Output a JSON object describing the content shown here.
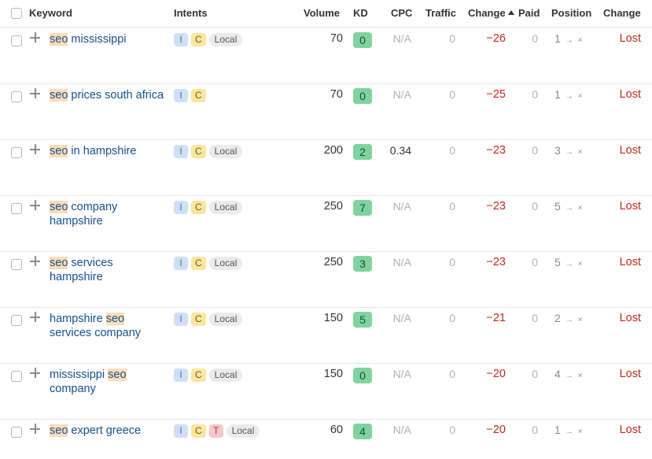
{
  "header": {
    "keyword": "Keyword",
    "intents": "Intents",
    "volume": "Volume",
    "kd": "KD",
    "cpc": "CPC",
    "traffic": "Traffic",
    "change": "Change",
    "paid": "Paid",
    "position": "Position",
    "change2": "Change"
  },
  "colors": {
    "keyword_link": "#14508f",
    "highlight": "#fddcb8",
    "negative": "#c2271a",
    "kd_badge": "#7fd3a0"
  },
  "rows": [
    {
      "kw_pre": "",
      "kw_hl": "seo",
      "kw_post": " mississippi",
      "intents": [
        "I",
        "C"
      ],
      "local": "Local",
      "volume": "70",
      "kd": "0",
      "cpc": "N/A",
      "traffic": "0",
      "change": "−26",
      "paid": "0",
      "position": "1",
      "arrow": "→",
      "x": "×",
      "status": "Lost"
    },
    {
      "kw_pre": "",
      "kw_hl": "seo",
      "kw_post": " prices south africa",
      "intents": [
        "I",
        "C"
      ],
      "local": "",
      "volume": "70",
      "kd": "0",
      "cpc": "N/A",
      "traffic": "0",
      "change": "−25",
      "paid": "0",
      "position": "1",
      "arrow": "→",
      "x": "×",
      "status": "Lost"
    },
    {
      "kw_pre": "",
      "kw_hl": "seo",
      "kw_post": " in hampshire",
      "intents": [
        "I",
        "C"
      ],
      "local": "Local",
      "volume": "200",
      "kd": "2",
      "cpc": "0.34",
      "traffic": "0",
      "change": "−23",
      "paid": "0",
      "position": "3",
      "arrow": "→",
      "x": "×",
      "status": "Lost"
    },
    {
      "kw_pre": "",
      "kw_hl": "seo",
      "kw_post": " company hampshire",
      "intents": [
        "I",
        "C"
      ],
      "local": "Local",
      "volume": "250",
      "kd": "7",
      "cpc": "N/A",
      "traffic": "0",
      "change": "−23",
      "paid": "0",
      "position": "5",
      "arrow": "→",
      "x": "×",
      "status": "Lost"
    },
    {
      "kw_pre": "",
      "kw_hl": "seo",
      "kw_post": " services hampshire",
      "intents": [
        "I",
        "C"
      ],
      "local": "Local",
      "volume": "250",
      "kd": "3",
      "cpc": "N/A",
      "traffic": "0",
      "change": "−23",
      "paid": "0",
      "position": "5",
      "arrow": "→",
      "x": "×",
      "status": "Lost"
    },
    {
      "kw_pre": "hampshire ",
      "kw_hl": "seo",
      "kw_post": " services company",
      "intents": [
        "I",
        "C"
      ],
      "local": "Local",
      "volume": "150",
      "kd": "5",
      "cpc": "N/A",
      "traffic": "0",
      "change": "−21",
      "paid": "0",
      "position": "2",
      "arrow": "→",
      "x": "×",
      "status": "Lost"
    },
    {
      "kw_pre": "mississippi ",
      "kw_hl": "seo",
      "kw_post": " company",
      "intents": [
        "I",
        "C"
      ],
      "local": "Local",
      "volume": "150",
      "kd": "0",
      "cpc": "N/A",
      "traffic": "0",
      "change": "−20",
      "paid": "0",
      "position": "4",
      "arrow": "→",
      "x": "×",
      "status": "Lost"
    },
    {
      "kw_pre": "",
      "kw_hl": "seo",
      "kw_post": " expert greece",
      "intents": [
        "I",
        "C",
        "T"
      ],
      "local": "Local",
      "volume": "60",
      "kd": "4",
      "cpc": "N/A",
      "traffic": "0",
      "change": "−20",
      "paid": "0",
      "position": "1",
      "arrow": "→",
      "x": "×",
      "status": "Lost"
    }
  ]
}
